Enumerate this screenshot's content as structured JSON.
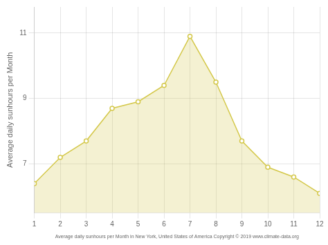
{
  "chart_data": {
    "type": "area",
    "x_label": "Average daily sunhours per Month in New York, United States of America Copyright © 2019 www.climate-data.org",
    "y_label": "Average daily sunhours per Month",
    "x": [
      1,
      2,
      3,
      4,
      5,
      6,
      7,
      8,
      9,
      10,
      11,
      12
    ],
    "values": [
      6.4,
      7.2,
      7.7,
      8.7,
      8.9,
      9.4,
      10.9,
      9.5,
      7.7,
      6.9,
      6.6,
      6.1
    ],
    "color": "#d4c84a",
    "marker": "circle",
    "xlim": [
      1,
      12
    ],
    "xticks": [
      1,
      2,
      3,
      4,
      5,
      6,
      7,
      8,
      9,
      10,
      11,
      12
    ],
    "ylim": [
      5.5,
      11.8
    ],
    "yticks": [
      7,
      9,
      11
    ],
    "grid": true
  }
}
